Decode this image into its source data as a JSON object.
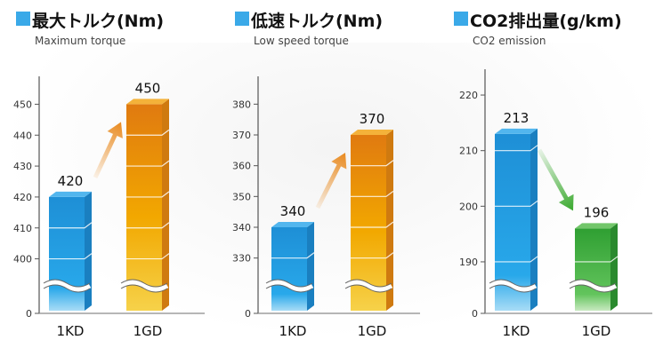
{
  "colors": {
    "title_square": "#3aa9e8",
    "title_text": "#111111",
    "subtitle_text": "#444444",
    "axis": "#555555",
    "bar_blue": "#1a9ae0",
    "bar_gold": "#f0c000",
    "bar_orange": "#e07a10",
    "bar_green": "#3fae3c",
    "arrow_up": "#e98a1f",
    "arrow_down": "#3aa92e"
  },
  "chart_data": [
    {
      "type": "bar",
      "title": "最大トルク(Nm)",
      "subtitle": "Maximum torque",
      "categories": [
        "1KD",
        "1GD"
      ],
      "values": [
        420,
        450
      ],
      "ylim": [
        395,
        455
      ],
      "yticks": [
        400,
        410,
        420,
        430,
        440,
        450
      ],
      "ybreak": true,
      "zero_label": "0",
      "bar_styles": [
        "blue",
        "gold"
      ],
      "trend": "up"
    },
    {
      "type": "bar",
      "title": "低速トルク(Nm)",
      "subtitle": "Low speed torque",
      "categories": [
        "1KD",
        "1GD"
      ],
      "values": [
        340,
        370
      ],
      "ylim": [
        325,
        385
      ],
      "yticks": [
        330,
        340,
        350,
        360,
        370,
        380
      ],
      "ybreak": true,
      "zero_label": "0",
      "bar_styles": [
        "blue",
        "gold"
      ],
      "trend": "up"
    },
    {
      "type": "bar",
      "title": "CO2排出量(g/km)",
      "subtitle": "CO2 emission",
      "categories": [
        "1KD",
        "1GD"
      ],
      "values": [
        213,
        196
      ],
      "ylim": [
        186,
        224
      ],
      "yticks": [
        190,
        200,
        210,
        220
      ],
      "ybreak": true,
      "zero_label": "0",
      "bar_styles": [
        "blue",
        "green"
      ],
      "trend": "down"
    }
  ]
}
